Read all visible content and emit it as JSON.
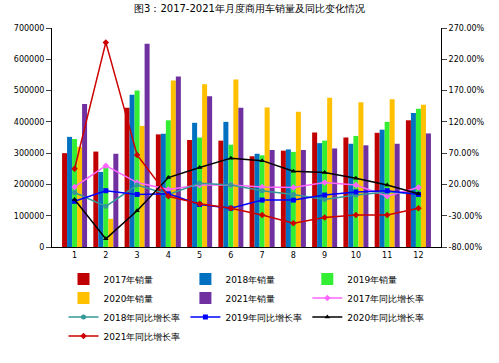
{
  "chart_data": {
    "type": "bar",
    "title": "图3：2017-2021年月度商用车销量及同比变化情况",
    "categories": [
      "1",
      "2",
      "3",
      "4",
      "5",
      "6",
      "7",
      "8",
      "9",
      "10",
      "11",
      "12"
    ],
    "ylim": [
      0,
      700000
    ],
    "yticks": [
      0,
      100000,
      200000,
      300000,
      400000,
      500000,
      600000,
      700000
    ],
    "y2lim": [
      -80,
      270
    ],
    "y2ticks": [
      {
        "value": -80,
        "label": "-80.00%"
      },
      {
        "value": -30,
        "label": "-30.00%"
      },
      {
        "value": 20,
        "label": "20.00%"
      },
      {
        "value": 70,
        "label": "70.00%"
      },
      {
        "value": 120,
        "label": "120.00%"
      },
      {
        "value": 170,
        "label": "170.00%"
      },
      {
        "value": 220,
        "label": "220.00%"
      },
      {
        "value": 270,
        "label": "270.00%"
      }
    ],
    "grid": false,
    "legend": "bottom",
    "series": [
      {
        "name": "2017年销量",
        "type": "bar",
        "color": "#c00000",
        "values": [
          300000,
          305000,
          445000,
          360000,
          342000,
          340000,
          290000,
          308000,
          366000,
          350000,
          365000,
          405000
        ]
      },
      {
        "name": "2018年销量",
        "type": "bar",
        "color": "#0070c0",
        "values": [
          352000,
          240000,
          487000,
          362000,
          397000,
          400000,
          298000,
          312000,
          332000,
          330000,
          375000,
          428000
        ]
      },
      {
        "name": "2019年销量",
        "type": "bar",
        "color": "#33ee33",
        "values": [
          345000,
          255000,
          500000,
          405000,
          350000,
          327000,
          293000,
          304000,
          340000,
          355000,
          400000,
          442000
        ]
      },
      {
        "name": "2020年销量",
        "type": "bar",
        "color": "#ffc000",
        "values": [
          320000,
          90000,
          387000,
          532000,
          520000,
          535000,
          446000,
          432000,
          477000,
          463000,
          472000,
          455000
        ]
      },
      {
        "name": "2021年销量",
        "type": "bar",
        "color": "#7030a0",
        "values": [
          457000,
          298000,
          650000,
          545000,
          482000,
          445000,
          310000,
          310000,
          315000,
          325000,
          330000,
          363000
        ]
      },
      {
        "name": "2017年同比增长率",
        "type": "line",
        "axis": "y2",
        "color": "#ff66ff",
        "marker": "diamond",
        "values": [
          16,
          50,
          23,
          12,
          19,
          19,
          16,
          15,
          23,
          19,
          1,
          15
        ]
      },
      {
        "name": "2018年同比增长率",
        "type": "line",
        "axis": "y2",
        "color": "#339999",
        "marker": "circle",
        "values": [
          7,
          -15,
          19,
          4,
          22,
          19,
          10,
          4,
          -4,
          3,
          8,
          5
        ]
      },
      {
        "name": "2019年同比增长率",
        "type": "line",
        "axis": "y2",
        "color": "#0000ff",
        "marker": "square",
        "values": [
          -7,
          10,
          4,
          5,
          -12,
          -18,
          -5,
          -5,
          3,
          8,
          10,
          4
        ]
      },
      {
        "name": "2020年同比增长率",
        "type": "line",
        "axis": "y2",
        "color": "#000000",
        "marker": "triangle-up",
        "values": [
          -4,
          -67,
          -22,
          31,
          47,
          62,
          58,
          41,
          39,
          30,
          19,
          5
        ]
      },
      {
        "name": "2021年同比增长率",
        "type": "line",
        "axis": "y2",
        "color": "#cc0000",
        "marker": "diamond",
        "values": [
          45,
          247,
          67,
          1,
          -11,
          -18,
          -29,
          -42,
          -33,
          -29,
          -29,
          -18
        ]
      }
    ]
  }
}
